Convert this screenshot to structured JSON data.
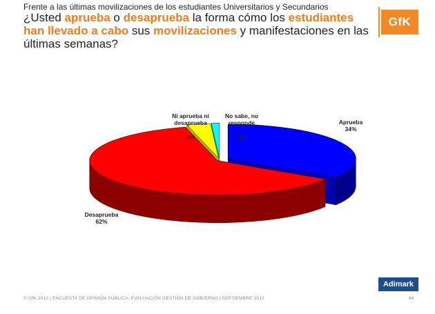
{
  "header": {
    "subtitle": "Frente a las últimas movilizaciones de los estudiantes Universitarios y Secundarios",
    "question_parts": [
      {
        "text": "¿Usted ",
        "hl": false
      },
      {
        "text": "aprueba",
        "hl": true
      },
      {
        "text": " o ",
        "hl": false
      },
      {
        "text": "desaprueba",
        "hl": true
      },
      {
        "text": " la forma cómo los ",
        "hl": false
      },
      {
        "text": "estudiantes han llevado a cabo",
        "hl": true
      },
      {
        "text": " sus ",
        "hl": false
      },
      {
        "text": "movilizaciones",
        "hl": true
      },
      {
        "text": " y manifestaciones en las últimas semanas?",
        "hl": false
      }
    ],
    "highlight_color": "#f07c1a"
  },
  "logos": {
    "gfk": "GfK",
    "adimark": "Adimark"
  },
  "chart_data": {
    "type": "pie",
    "categories": [
      "Aprueba",
      "Desaprueba",
      "Ni aprueba ni desaprueba",
      "No sabe, no responde"
    ],
    "values": [
      34,
      62,
      3,
      1
    ],
    "value_labels": [
      "34%",
      "62%",
      "3%",
      "1%"
    ],
    "display_names": [
      "Aprueba",
      "Desaprueba",
      "Ni aprueba ni\ndesaprueba",
      "No sabe, no\nresponde"
    ],
    "colors": [
      "#0000ff",
      "#ff0000",
      "#ffff00",
      "#00ffff"
    ],
    "style": "3d-exploded"
  },
  "footer": {
    "text": "© GfK 2012 | ENCUESTA DE OPINIÓN PÚBLICA: EVALUACIÓN GESTIÓN DE GOBIERNO | SEPTIEMBRE 2012",
    "page": "64"
  }
}
